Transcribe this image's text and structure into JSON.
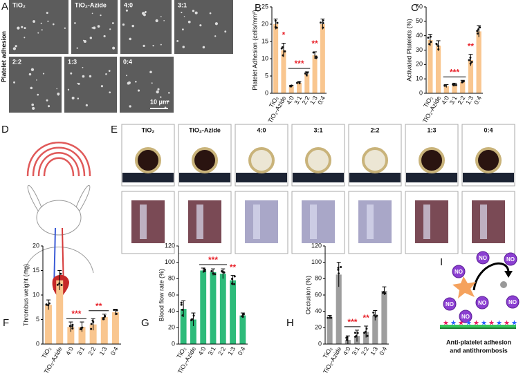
{
  "figure": {
    "A": {
      "letter": "A",
      "ylabel": "Platelet adhesion",
      "labels": [
        "TiO₂",
        "TiO₂-Azide",
        "4:0",
        "3:1",
        "2:2",
        "1:3",
        "0:4"
      ],
      "scale": "10 μm"
    },
    "D": {
      "letter": "D"
    },
    "E": {
      "letter": "E",
      "labels": [
        "TiO₂",
        "TiO₂-Azide",
        "4:0",
        "3:1",
        "2:2",
        "1:3",
        "0:4"
      ]
    },
    "I": {
      "letter": "I",
      "bubbles": [
        "NO",
        "NO",
        "NO",
        "NO",
        "NO",
        "NO",
        "NO"
      ],
      "caption": [
        "Anti-platelet adhesion",
        "and antithrombosis"
      ]
    }
  },
  "chart_data": [
    {
      "type": "bar",
      "panel": "B",
      "ylabel": "Platelet Adhesion (cells/mm²)",
      "categories": [
        "TiO₂",
        "TiO₂-Azide",
        "4:0",
        "3:1",
        "2:2",
        "1:3",
        "0:4"
      ],
      "values": [
        20,
        12.5,
        2,
        3,
        5.5,
        11,
        20
      ],
      "errors": [
        1.5,
        2,
        0.3,
        0.4,
        0.7,
        1,
        1.5
      ],
      "color": "#f9c68f",
      "ylim": [
        0,
        25
      ],
      "yticks": [
        0,
        5,
        10,
        15,
        20,
        25
      ],
      "annotations": [
        {
          "text": "*",
          "from": 1,
          "to": 1
        },
        {
          "text": "***",
          "from": 2,
          "to": 4
        },
        {
          "text": "**",
          "from": 5,
          "to": 5
        }
      ]
    },
    {
      "type": "bar",
      "panel": "C",
      "ylabel": "Activated Platelets (%)",
      "categories": [
        "TiO₂",
        "TiO₂-Azide",
        "4:0",
        "3:1",
        "2:2",
        "1:3",
        "0:4"
      ],
      "values": [
        37,
        33,
        5,
        6,
        8,
        23,
        43
      ],
      "errors": [
        4,
        3.5,
        1,
        1,
        1,
        4,
        4
      ],
      "color": "#f9c68f",
      "ylim": [
        0,
        60
      ],
      "yticks": [
        0,
        10,
        20,
        30,
        40,
        50,
        60
      ],
      "annotations": [
        {
          "text": "***",
          "from": 2,
          "to": 4
        },
        {
          "text": "**",
          "from": 5,
          "to": 5
        }
      ]
    },
    {
      "type": "bar",
      "panel": "F",
      "ylabel": "Thrombus weight (mg)",
      "categories": [
        "TiO₂",
        "TiO₂-Azide",
        "4:0",
        "3:1",
        "2:2",
        "1:3",
        "0:4"
      ],
      "values": [
        8,
        13,
        3.5,
        3.5,
        4,
        5.5,
        6.5
      ],
      "errors": [
        1,
        2,
        1,
        1,
        1.2,
        0.6,
        0.6
      ],
      "color": "#f9c68f",
      "ylim": [
        0,
        20
      ],
      "yticks": [
        0,
        5,
        10,
        15,
        20
      ],
      "annotations": [
        {
          "text": "***",
          "from": 2,
          "to": 3
        },
        {
          "text": "**",
          "from": 4,
          "to": 5
        }
      ]
    },
    {
      "type": "bar",
      "panel": "G",
      "ylabel": "Blood flow rate (%)",
      "categories": [
        "TiO₂",
        "TiO₂-Azide",
        "4:0",
        "3:1",
        "2:2",
        "1:3",
        "0:4"
      ],
      "values": [
        43,
        30,
        90,
        88,
        86,
        78,
        35
      ],
      "errors": [
        10,
        8,
        3,
        4,
        6,
        6,
        3
      ],
      "color": "#2dbb7a",
      "ylim": [
        0,
        120
      ],
      "yticks": [
        0,
        20,
        40,
        60,
        80,
        100,
        120
      ],
      "annotations": [
        {
          "text": "***",
          "from": 2,
          "to": 4
        },
        {
          "text": "**",
          "from": 5,
          "to": 5
        }
      ]
    },
    {
      "type": "bar",
      "panel": "H",
      "ylabel": "Occlusion (%)",
      "categories": [
        "TiO₂",
        "TiO₂-Azide",
        "4:0",
        "3:1",
        "2:2",
        "1:3",
        "0:4"
      ],
      "values": [
        33,
        85,
        5,
        10,
        15,
        35,
        65
      ],
      "errors": [
        2,
        15,
        5,
        7,
        7,
        6,
        5
      ],
      "color": "#9e9e9e",
      "ylim": [
        0,
        120
      ],
      "yticks": [
        0,
        20,
        40,
        60,
        80,
        100,
        120
      ],
      "annotations": [
        {
          "text": "***",
          "from": 2,
          "to": 3
        },
        {
          "text": "**",
          "from": 4,
          "to": 4
        }
      ]
    }
  ]
}
